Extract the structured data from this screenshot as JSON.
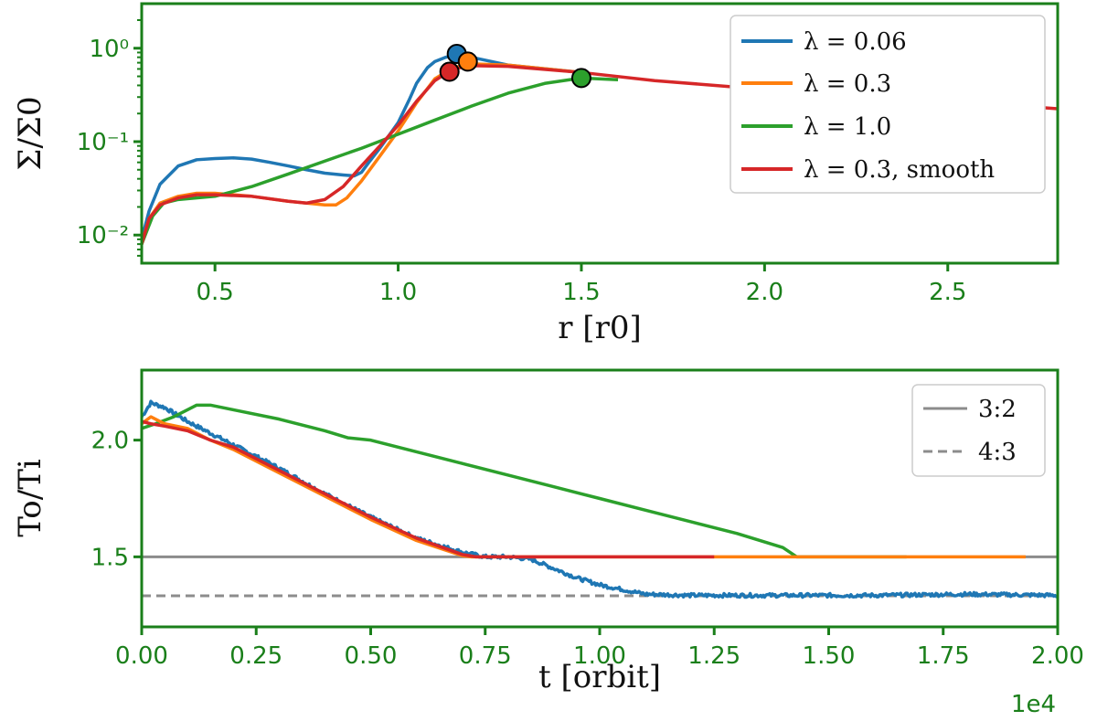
{
  "colors": {
    "blue": "#1f77b4",
    "orange": "#ff7f0e",
    "green": "#2ca02c",
    "red": "#d62728",
    "gray": "#8c8c8c",
    "axis": "#1a7f1a"
  },
  "chart_data": [
    {
      "type": "line",
      "yscale": "log",
      "xlabel": "r [r0]",
      "ylabel": "Σ/Σ0",
      "xlim": [
        0.3,
        2.8
      ],
      "ylim": [
        0.005,
        3.0
      ],
      "xticks": [
        0.5,
        1.0,
        1.5,
        2.0,
        2.5
      ],
      "xtick_labels": [
        "0.5",
        "1.0",
        "1.5",
        "2.0",
        "2.5"
      ],
      "yticks": [
        0.01,
        0.1,
        1.0
      ],
      "ytick_labels": [
        "10⁻²",
        "10⁻¹",
        "10⁰"
      ],
      "legend_position": "top-right",
      "series": [
        {
          "name": "λ = 0.06",
          "color": "#1f77b4",
          "x": [
            0.3,
            0.32,
            0.35,
            0.4,
            0.45,
            0.5,
            0.55,
            0.6,
            0.65,
            0.7,
            0.75,
            0.8,
            0.85,
            0.88,
            0.9,
            0.92,
            0.95,
            1.0,
            1.03,
            1.05,
            1.08,
            1.1,
            1.13,
            1.16,
            1.2,
            1.3,
            1.5
          ],
          "y": [
            0.009,
            0.018,
            0.035,
            0.055,
            0.064,
            0.066,
            0.067,
            0.065,
            0.06,
            0.055,
            0.05,
            0.046,
            0.044,
            0.043,
            0.047,
            0.06,
            0.085,
            0.16,
            0.28,
            0.42,
            0.62,
            0.72,
            0.8,
            0.86,
            0.8,
            0.66,
            0.55
          ]
        },
        {
          "name": "λ = 0.3",
          "color": "#ff7f0e",
          "x": [
            0.3,
            0.32,
            0.35,
            0.4,
            0.45,
            0.5,
            0.6,
            0.7,
            0.75,
            0.8,
            0.83,
            0.86,
            0.9,
            0.95,
            1.0,
            1.05,
            1.1,
            1.15,
            1.2,
            1.3,
            1.5
          ],
          "y": [
            0.008,
            0.015,
            0.022,
            0.026,
            0.028,
            0.028,
            0.026,
            0.023,
            0.022,
            0.021,
            0.021,
            0.025,
            0.038,
            0.07,
            0.13,
            0.26,
            0.47,
            0.62,
            0.68,
            0.66,
            0.55
          ]
        },
        {
          "name": "λ = 1.0",
          "color": "#2ca02c",
          "x": [
            0.3,
            0.33,
            0.36,
            0.4,
            0.5,
            0.6,
            0.7,
            0.8,
            0.9,
            1.0,
            1.1,
            1.2,
            1.3,
            1.4,
            1.5,
            1.6
          ],
          "y": [
            0.008,
            0.016,
            0.022,
            0.024,
            0.026,
            0.033,
            0.045,
            0.062,
            0.085,
            0.12,
            0.17,
            0.24,
            0.33,
            0.42,
            0.48,
            0.46
          ]
        },
        {
          "name": "λ = 0.3,  smooth",
          "color": "#d62728",
          "x": [
            0.3,
            0.32,
            0.35,
            0.4,
            0.45,
            0.5,
            0.6,
            0.7,
            0.75,
            0.8,
            0.85,
            0.9,
            0.95,
            1.0,
            1.05,
            1.1,
            1.15,
            1.2,
            1.3,
            1.5
          ],
          "y": [
            0.008,
            0.015,
            0.021,
            0.025,
            0.027,
            0.027,
            0.026,
            0.023,
            0.022,
            0.024,
            0.033,
            0.055,
            0.09,
            0.15,
            0.27,
            0.45,
            0.6,
            0.65,
            0.64,
            0.55
          ]
        }
      ],
      "shared_tail": {
        "color": "#d62728",
        "x": [
          1.5,
          1.7,
          1.9,
          2.1,
          2.3,
          2.5,
          2.7,
          2.8
        ],
        "y": [
          0.55,
          0.45,
          0.39,
          0.34,
          0.3,
          0.27,
          0.24,
          0.225
        ]
      },
      "markers": [
        {
          "x": 1.16,
          "y": 0.87,
          "color": "#1f77b4"
        },
        {
          "x": 1.19,
          "y": 0.72,
          "color": "#ff7f0e"
        },
        {
          "x": 1.5,
          "y": 0.48,
          "color": "#2ca02c"
        },
        {
          "x": 1.14,
          "y": 0.56,
          "color": "#d62728"
        }
      ]
    },
    {
      "type": "line",
      "xlabel": "t [orbit]",
      "ylabel": "To/Ti",
      "x_offset_text": "1e4",
      "xlim": [
        0.0,
        2.0
      ],
      "ylim": [
        1.2,
        2.3
      ],
      "xticks": [
        0.0,
        0.25,
        0.5,
        0.75,
        1.0,
        1.25,
        1.5,
        1.75,
        2.0
      ],
      "xtick_labels": [
        "0.00",
        "0.25",
        "0.50",
        "0.75",
        "1.00",
        "1.25",
        "1.50",
        "1.75",
        "2.00"
      ],
      "yticks": [
        1.5,
        2.0
      ],
      "ytick_labels": [
        "1.5",
        "2.0"
      ],
      "legend_position": "top-right",
      "reference_lines": [
        {
          "name": "3:2",
          "y": 1.5,
          "style": "solid",
          "color": "#8c8c8c"
        },
        {
          "name": "4:3",
          "y": 1.3333,
          "style": "dashed",
          "color": "#8c8c8c"
        }
      ],
      "series": [
        {
          "name": "λ = 0.06",
          "color": "#1f77b4",
          "x": [
            0.0,
            0.02,
            0.05,
            0.1,
            0.2,
            0.3,
            0.4,
            0.5,
            0.6,
            0.7,
            0.75,
            0.8,
            0.85,
            0.9,
            0.95,
            1.0,
            1.05,
            1.1,
            1.2,
            1.4,
            1.6,
            1.8,
            2.0
          ],
          "y": [
            2.1,
            2.16,
            2.14,
            2.08,
            1.98,
            1.88,
            1.77,
            1.67,
            1.58,
            1.52,
            1.5,
            1.5,
            1.49,
            1.45,
            1.41,
            1.38,
            1.36,
            1.34,
            1.335,
            1.335,
            1.335,
            1.34,
            1.335
          ],
          "noise": 0.008
        },
        {
          "name": "λ = 0.3",
          "color": "#ff7f0e",
          "x": [
            0.0,
            0.02,
            0.05,
            0.1,
            0.15,
            0.2,
            0.3,
            0.4,
            0.5,
            0.6,
            0.7,
            0.72,
            0.8,
            1.0,
            1.2,
            1.4,
            1.6,
            1.8,
            1.93
          ],
          "y": [
            2.07,
            2.1,
            2.07,
            2.05,
            2.0,
            1.96,
            1.86,
            1.76,
            1.66,
            1.57,
            1.505,
            1.5,
            1.5,
            1.5,
            1.5,
            1.5,
            1.5,
            1.5,
            1.5
          ]
        },
        {
          "name": "λ = 1.0",
          "color": "#2ca02c",
          "x": [
            0.0,
            0.03,
            0.07,
            0.1,
            0.12,
            0.15,
            0.2,
            0.3,
            0.4,
            0.45,
            0.5,
            0.6,
            0.7,
            0.8,
            0.9,
            1.0,
            1.1,
            1.2,
            1.3,
            1.4,
            1.43,
            1.5,
            1.6,
            1.67
          ],
          "y": [
            2.05,
            2.07,
            2.1,
            2.13,
            2.15,
            2.15,
            2.13,
            2.09,
            2.04,
            2.01,
            2.0,
            1.95,
            1.9,
            1.85,
            1.8,
            1.75,
            1.7,
            1.65,
            1.6,
            1.54,
            1.5,
            1.5,
            1.5,
            1.5
          ]
        },
        {
          "name": "λ = 0.3,  smooth",
          "color": "#d62728",
          "x": [
            0.0,
            0.02,
            0.05,
            0.1,
            0.15,
            0.2,
            0.3,
            0.4,
            0.5,
            0.6,
            0.7,
            0.73,
            0.8,
            1.0,
            1.25
          ],
          "y": [
            2.08,
            2.07,
            2.06,
            2.04,
            2.0,
            1.97,
            1.87,
            1.77,
            1.67,
            1.58,
            1.51,
            1.5,
            1.5,
            1.5,
            1.5
          ]
        }
      ]
    }
  ],
  "top_legend": [
    {
      "label": "λ = 0.06",
      "color": "#1f77b4"
    },
    {
      "label": "λ = 0.3",
      "color": "#ff7f0e"
    },
    {
      "label": "λ = 1.0",
      "color": "#2ca02c"
    },
    {
      "label": "λ = 0.3,  smooth",
      "color": "#d62728"
    }
  ],
  "bottom_legend": [
    {
      "label": "3:2",
      "style": "solid",
      "color": "#8c8c8c"
    },
    {
      "label": "4:3",
      "style": "dashed",
      "color": "#8c8c8c"
    }
  ]
}
